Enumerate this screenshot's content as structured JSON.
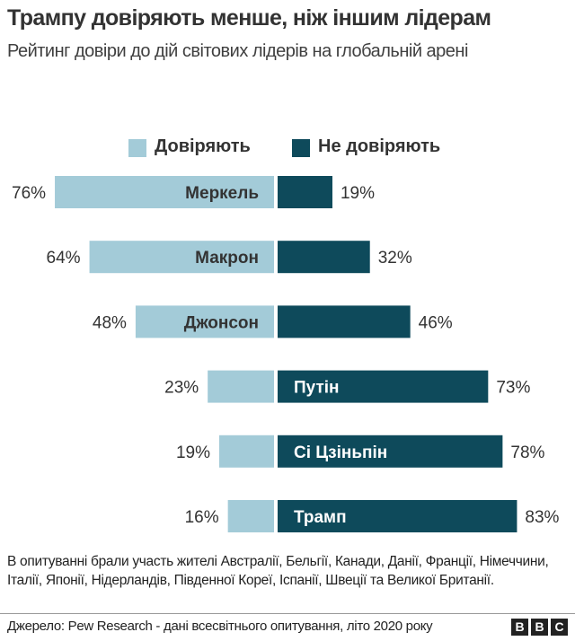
{
  "title": "Трампу довіряють менше, ніж іншим лідерам",
  "subtitle": "Рейтинг довіри до дій світових лідерів на глобальній арені",
  "chart_data": {
    "type": "bar",
    "orientation": "horizontal-diverging",
    "categories": [
      "Меркель",
      "Макрон",
      "Джонсон",
      "Путін",
      "Сі Цзіньпін",
      "Трамп"
    ],
    "series": [
      {
        "name": "Довіряють",
        "values": [
          76,
          64,
          48,
          23,
          19,
          16
        ],
        "color": "#a3cbd8",
        "labels": [
          "76%",
          "64%",
          "48%",
          "23%",
          "19%",
          "16%"
        ]
      },
      {
        "name": "Не довіряють",
        "values": [
          19,
          32,
          46,
          73,
          78,
          83
        ],
        "color": "#0e4a5b",
        "labels": [
          "19%",
          "32%",
          "46%",
          "73%",
          "78%",
          "83%"
        ]
      }
    ],
    "unit": "%",
    "legend": "top-center",
    "grid": false
  },
  "note": "В опитуванні брали участь жителі Австралії, Бельгії, Канади, Данії, Франції, Німеччини, Італії, Японії, Нідерландів, Південної Кореї, Іспанії, Швеції та Великої Британії.",
  "source": "Джерело: Pew Research - дані всесвітнього опитування, літо 2020 року",
  "logo": {
    "letters": [
      "B",
      "B",
      "C"
    ]
  }
}
